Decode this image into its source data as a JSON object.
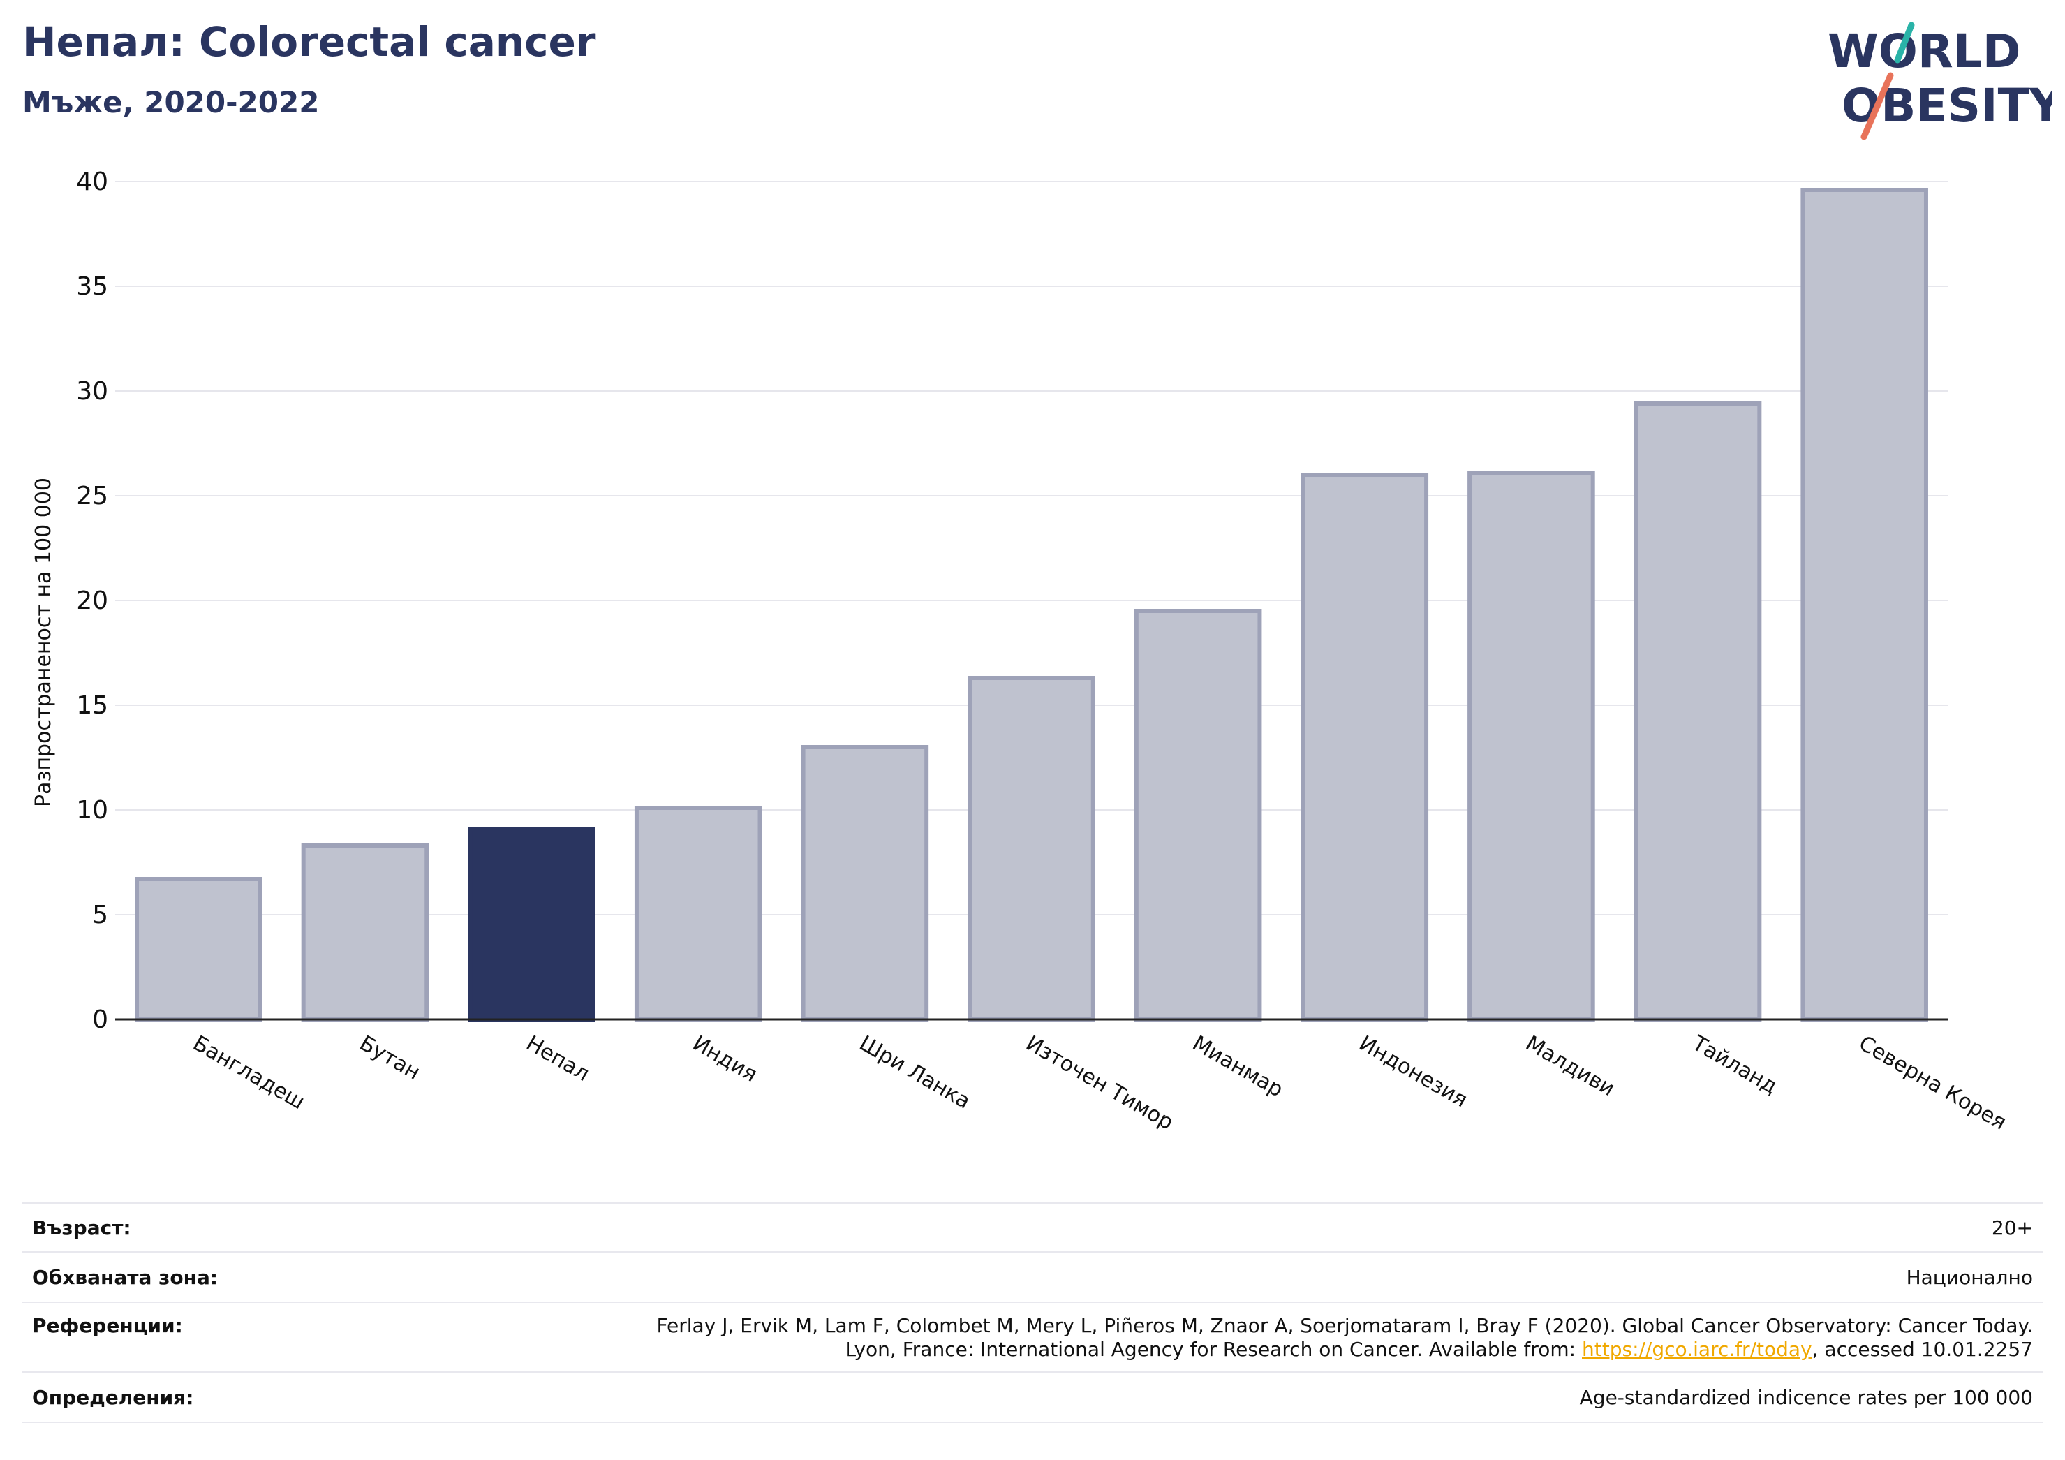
{
  "header": {
    "title": "Непал: Colorectal cancer",
    "subtitle": "Мъже, 2020-2022"
  },
  "logo": {
    "line1": "WORLD",
    "line2": "OBESITY",
    "text_color": "#2a3560",
    "slash_top_color": "#2ab3a8",
    "slash_bottom_color": "#e8735a"
  },
  "colors": {
    "bar_default": "#bfc2cf",
    "bar_default_stroke": "#9ea2b8",
    "bar_highlight": "#2a3560",
    "grid": "#e6e6ec",
    "axis": "#222222"
  },
  "chart_data": {
    "type": "bar",
    "categories": [
      "Бангладеш",
      "Бутан",
      "Непал",
      "Индия",
      "Шри Ланка",
      "Източен Тимор",
      "Мианмар",
      "Индонезия",
      "Малдиви",
      "Тайланд",
      "Северна Корея"
    ],
    "values": [
      6.7,
      8.3,
      9.1,
      10.1,
      13.0,
      16.3,
      19.5,
      26.0,
      26.1,
      29.4,
      39.6
    ],
    "highlight": "Непал",
    "title": "Непал: Colorectal cancer",
    "subtitle": "Мъже, 2020-2022",
    "xlabel": "",
    "ylabel": "Разпространеност  на 100 000",
    "ylim": [
      0,
      40
    ],
    "yticks": [
      0,
      5,
      10,
      15,
      20,
      25,
      30,
      35,
      40
    ],
    "grid": true,
    "legend": "none"
  },
  "footer": {
    "age_label": "Възраст:",
    "age_value": "20+",
    "area_label": "Обхваната зона:",
    "area_value": "Национално",
    "ref_label": "Референции:",
    "ref_line1": "Ferlay J, Ervik M, Lam F, Colombet M, Mery L, Piñeros M, Znaor A, Soerjomataram I, Bray F (2020). Global Cancer Observatory: Cancer Today.",
    "ref_line2_prefix": "Lyon, France: International Agency for Research on Cancer. Available from: ",
    "ref_link": "https://gco.iarc.fr/today",
    "ref_line2_suffix": ", accessed 10.01.2257",
    "def_label": "Определения:",
    "def_value": "Age-standardized indicence rates per 100 000"
  }
}
